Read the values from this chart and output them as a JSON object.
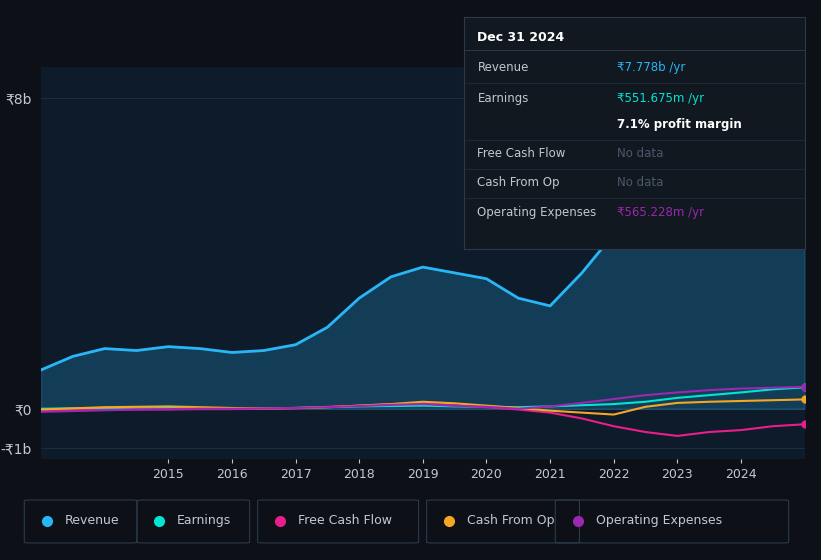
{
  "bg_color": "#0d1117",
  "plot_bg_color": "#0d1b2a",
  "grid_color": "#1e2d3d",
  "text_color": "#c0c8d0",
  "title_color": "#ffffff",
  "years": [
    2013,
    2013.5,
    2014,
    2014.5,
    2015,
    2015.5,
    2016,
    2016.5,
    2017,
    2017.5,
    2018,
    2018.5,
    2019,
    2019.5,
    2020,
    2020.5,
    2021,
    2021.5,
    2022,
    2022.5,
    2023,
    2023.5,
    2024,
    2024.5,
    2025
  ],
  "revenue": [
    1.0,
    1.35,
    1.55,
    1.5,
    1.6,
    1.55,
    1.45,
    1.5,
    1.65,
    2.1,
    2.85,
    3.4,
    3.65,
    3.5,
    3.35,
    2.85,
    2.65,
    3.5,
    4.5,
    5.5,
    6.1,
    6.2,
    6.8,
    7.4,
    7.778
  ],
  "earnings": [
    0.0,
    0.01,
    0.02,
    0.01,
    0.02,
    0.01,
    0.0,
    0.01,
    0.02,
    0.04,
    0.06,
    0.07,
    0.08,
    0.06,
    0.05,
    0.04,
    0.06,
    0.09,
    0.12,
    0.18,
    0.28,
    0.35,
    0.42,
    0.5,
    0.552
  ],
  "free_cash_flow": [
    -0.05,
    -0.04,
    -0.03,
    -0.02,
    -0.02,
    -0.01,
    -0.01,
    0.0,
    0.01,
    0.05,
    0.08,
    0.12,
    0.14,
    0.08,
    0.04,
    -0.02,
    -0.1,
    -0.25,
    -0.45,
    -0.6,
    -0.7,
    -0.6,
    -0.55,
    -0.45,
    -0.4
  ],
  "cash_from_op": [
    -0.02,
    0.01,
    0.04,
    0.05,
    0.06,
    0.04,
    0.02,
    0.01,
    0.02,
    0.04,
    0.08,
    0.12,
    0.18,
    0.14,
    0.08,
    0.02,
    -0.05,
    -0.1,
    -0.15,
    0.05,
    0.15,
    0.18,
    0.2,
    0.22,
    0.24
  ],
  "operating_expenses": [
    -0.08,
    -0.06,
    -0.04,
    -0.02,
    -0.01,
    0.0,
    0.0,
    0.01,
    0.02,
    0.04,
    0.07,
    0.1,
    0.12,
    0.08,
    0.05,
    0.0,
    0.06,
    0.15,
    0.25,
    0.35,
    0.42,
    0.48,
    0.52,
    0.54,
    0.565
  ],
  "revenue_color": "#29b6f6",
  "earnings_color": "#00e5d4",
  "free_cash_flow_color": "#e91e8c",
  "cash_from_op_color": "#f5a623",
  "operating_expenses_color": "#9c27b0",
  "ytick_labels": [
    "-₹1b",
    "₹0",
    "₹8b"
  ],
  "ytick_vals": [
    -1,
    0,
    8
  ],
  "xticks": [
    2015,
    2016,
    2017,
    2018,
    2019,
    2020,
    2021,
    2022,
    2023,
    2024
  ],
  "info_box_title": "Dec 31 2024",
  "info_revenue": "₹7.778b /yr",
  "info_earnings": "₹551.675m /yr",
  "info_profit_margin": "7.1% profit margin",
  "info_fcf": "No data",
  "info_cashop": "No data",
  "info_opex": "₹565.228m /yr",
  "legend_labels": [
    "Revenue",
    "Earnings",
    "Free Cash Flow",
    "Cash From Op",
    "Operating Expenses"
  ],
  "no_data_color": "#4a5a6a",
  "divider_color": "#2a3a4a",
  "row_divider_color": "#1e2d3d"
}
